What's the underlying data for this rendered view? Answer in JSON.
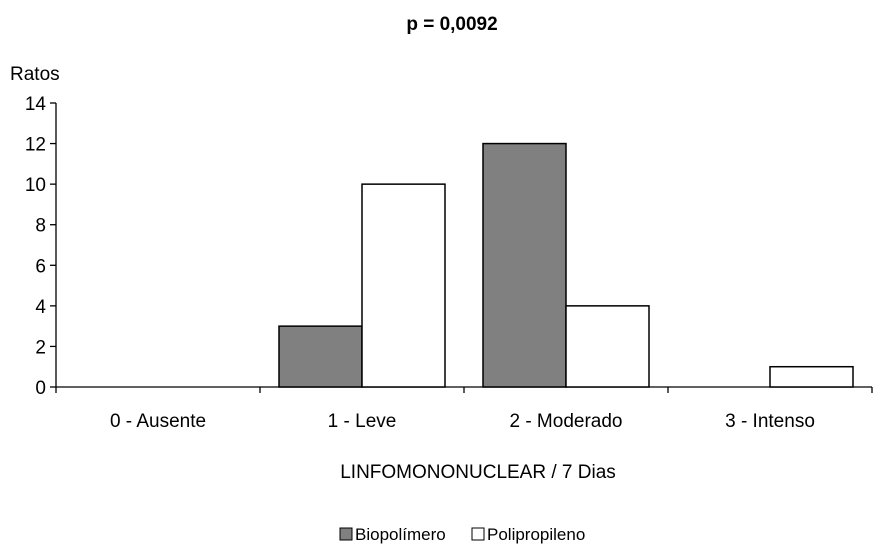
{
  "chart_data": {
    "type": "bar",
    "title": "p = 0,0092",
    "ylabel": "Ratos",
    "xlabel": "LINFOMONONUCLEAR / 7 Dias",
    "categories": [
      "0 - Ausente",
      "1 - Leve",
      "2 - Moderado",
      "3 - Intenso"
    ],
    "series": [
      {
        "name": "Biopolímero",
        "values": [
          0,
          3,
          12,
          0
        ],
        "color": "#808080"
      },
      {
        "name": "Polipropileno",
        "values": [
          0,
          10,
          4,
          1
        ],
        "color": "#ffffff"
      }
    ],
    "ylim": [
      0,
      14
    ],
    "yticks": [
      "0",
      "2",
      "4",
      "6",
      "8",
      "10",
      "12",
      "14"
    ],
    "grid": false,
    "legend": "bottom-center"
  }
}
